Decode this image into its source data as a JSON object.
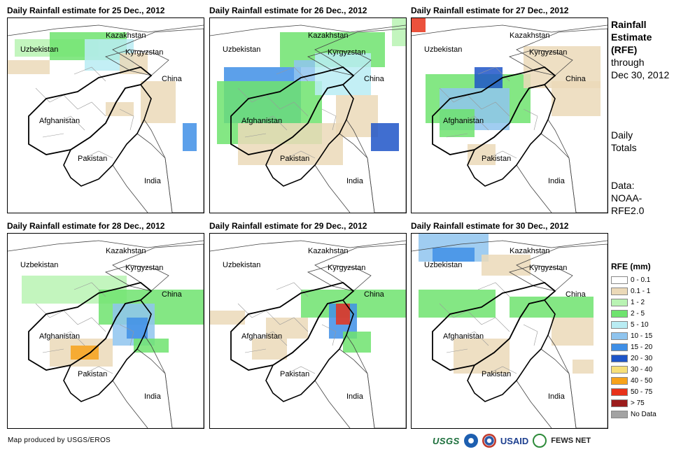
{
  "panels": [
    {
      "title": "Daily Rainfall estimate for 25 Dec., 2012",
      "day": 25
    },
    {
      "title": "Daily Rainfall estimate for 26 Dec., 2012",
      "day": 26
    },
    {
      "title": "Daily Rainfall estimate for 27 Dec., 2012",
      "day": 27
    },
    {
      "title": "Daily Rainfall estimate for 28 Dec., 2012",
      "day": 28
    },
    {
      "title": "Daily Rainfall estimate for 29 Dec., 2012",
      "day": 29
    },
    {
      "title": "Daily Rainfall estimate for 30 Dec., 2012",
      "day": 30
    }
  ],
  "places": {
    "kazakhstan": "Kazakhstan",
    "uzbekistan": "Uzbekistan",
    "kyrgyzstan": "Kyrgyzstan",
    "china": "China",
    "afghanistan": "Afghanistan",
    "pakistan": "Pakistan",
    "india": "India"
  },
  "side": {
    "line1": "Rainfall",
    "line2": "Estimate",
    "line3": "(RFE)",
    "line4": "through",
    "line5": "Dec 30, 2012",
    "line6": "Daily",
    "line7": "Totals",
    "line8": "Data:",
    "line9": "NOAA-",
    "line10": "RFE2.0"
  },
  "legend": {
    "title": "RFE (mm)",
    "items": [
      {
        "label": "0 - 0.1",
        "color": "#ffffff"
      },
      {
        "label": "0.1 - 1",
        "color": "#ebd9b8"
      },
      {
        "label": "1 - 2",
        "color": "#b9f3b3"
      },
      {
        "label": "2 - 5",
        "color": "#6fe36f"
      },
      {
        "label": "5 - 10",
        "color": "#b9ecf3"
      },
      {
        "label": "10 - 15",
        "color": "#8fc4ee"
      },
      {
        "label": "15 - 20",
        "color": "#3f8fe6"
      },
      {
        "label": "20 - 30",
        "color": "#1e55c8"
      },
      {
        "label": "30 - 40",
        "color": "#f6df78"
      },
      {
        "label": "40 - 50",
        "color": "#f7a21a"
      },
      {
        "label": "50 - 75",
        "color": "#e8321a"
      },
      {
        "label": "> 75",
        "color": "#9b1c1c"
      },
      {
        "label": "No Data",
        "color": "#a3a3a3"
      }
    ]
  },
  "credit": "Map produced by USGS/EROS",
  "logos": {
    "usgs": "USGS",
    "usaid": "USAID",
    "fews": "FEWS NET"
  }
}
